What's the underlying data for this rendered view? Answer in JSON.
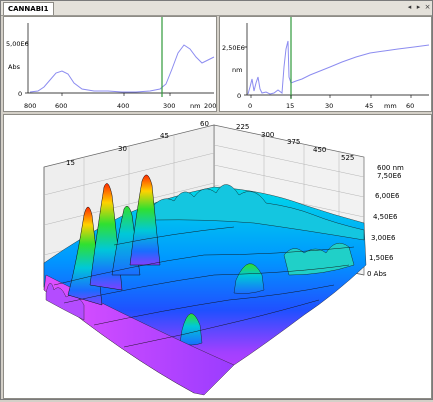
{
  "window": {
    "tab_label": "CANNABI1",
    "controls": [
      "◂",
      "▸",
      "×"
    ]
  },
  "top_left_panel": {
    "y_unit": "Abs",
    "y_ticks": [
      "5,00E6",
      "0"
    ],
    "x_ticks": [
      "600",
      "400",
      "300",
      "200"
    ],
    "x_edge_label": "800",
    "x_unit": "nm"
  },
  "top_right_panel": {
    "y_unit": "nm",
    "y_ticks": [
      "2,50E6",
      "0"
    ],
    "x_ticks": [
      "0",
      "15",
      "30",
      "45",
      "60"
    ],
    "x_unit": "mm"
  },
  "surface_plot": {
    "time_ticks": [
      "15",
      "30",
      "45",
      "60"
    ],
    "wavelength_ticks": [
      "225",
      "300",
      "375",
      "450",
      "525",
      "600 nm"
    ],
    "abs_ticks": [
      "7,50E6",
      "6,00E6",
      "4,50E6",
      "3,00E6",
      "1,50E6",
      "0 Abs"
    ]
  },
  "colors": {
    "frame": "#d4d0c8",
    "spectrum_line": "#8c8cf0",
    "cursor_line": "#2f9a3a",
    "surface_low": "#d23cff",
    "surface_mid": "#00b4ff",
    "surface_peak": "#ff2a00"
  }
}
